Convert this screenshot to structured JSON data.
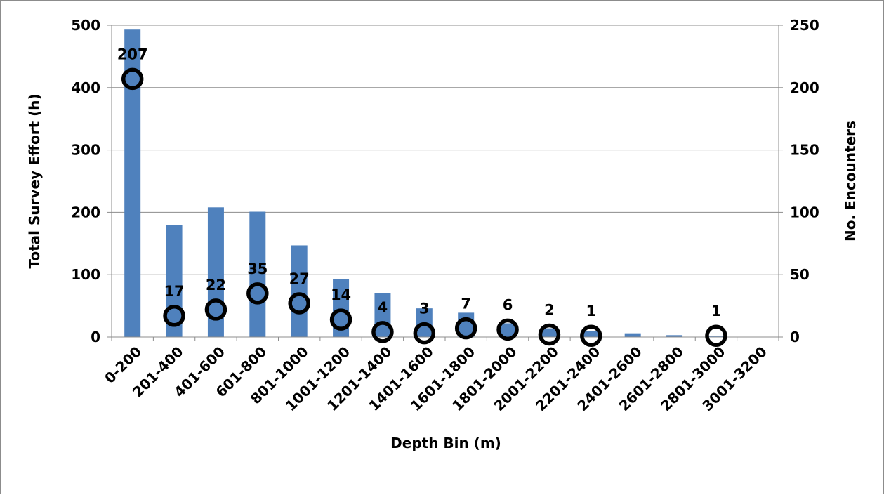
{
  "chart_data": {
    "type": "bar",
    "title": "",
    "xlabel": "Depth Bin (m)",
    "ylabel": "Total Survey Effort (h)",
    "y2label": "No. Encounters",
    "ylim": [
      0,
      500
    ],
    "y2lim": [
      0,
      250
    ],
    "yticks": [
      "0",
      "100",
      "200",
      "300",
      "400",
      "500"
    ],
    "y2ticks": [
      "0",
      "50",
      "100",
      "150",
      "200",
      "250"
    ],
    "grid": true,
    "legend": "none",
    "categories": [
      "0-200",
      "201-400",
      "401-600",
      "601-800",
      "801-1000",
      "1001-1200",
      "1201-1400",
      "1401-1600",
      "1601-1800",
      "1801-2000",
      "2001-2200",
      "2201-2400",
      "2401-2600",
      "2601-2800",
      "2801-3000",
      "3001-3200"
    ],
    "series": [
      {
        "kind": "bar",
        "axis": "left",
        "color": "#4f81bd",
        "values": [
          493,
          180,
          208,
          201,
          147,
          93,
          70,
          46,
          39,
          22,
          14,
          10,
          6,
          3,
          1,
          0
        ]
      },
      {
        "kind": "marker",
        "axis": "right",
        "color": "#000000",
        "values": [
          207,
          17,
          22,
          35,
          27,
          14,
          4,
          3,
          7,
          6,
          2,
          1,
          null,
          null,
          1,
          null
        ],
        "labels": [
          "207",
          "17",
          "22",
          "35",
          "27",
          "14",
          "4",
          "3",
          "7",
          "6",
          "2",
          "1",
          "",
          "",
          "1",
          ""
        ]
      }
    ]
  }
}
